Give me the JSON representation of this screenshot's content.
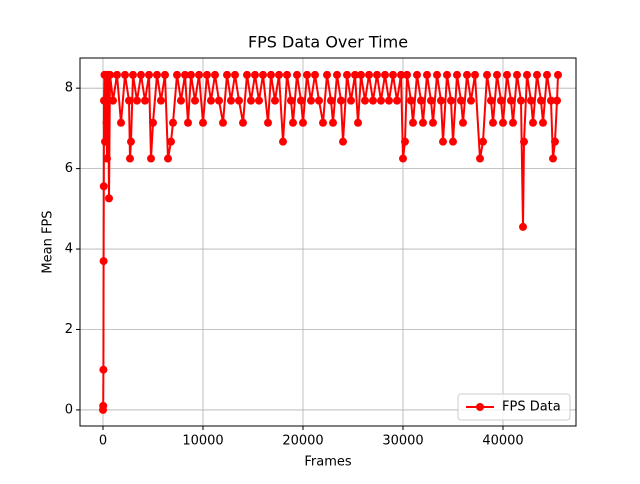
{
  "chart_data": {
    "type": "line",
    "title": "FPS Data Over Time",
    "x_label": "Frames",
    "y_label": "Mean FPS",
    "x": [
      0,
      20,
      40,
      60,
      80,
      100,
      150,
      200,
      300,
      350,
      400,
      500,
      600,
      700,
      1000,
      1400,
      1800,
      2200,
      2600,
      2700,
      2800,
      3000,
      3400,
      3800,
      4200,
      4600,
      4800,
      5000,
      5400,
      5800,
      6200,
      6500,
      6800,
      7000,
      7400,
      7800,
      8200,
      8500,
      8800,
      9200,
      9600,
      10000,
      10400,
      10800,
      11200,
      11600,
      12000,
      12400,
      12800,
      13200,
      13600,
      14000,
      14400,
      14800,
      15200,
      15600,
      16000,
      16500,
      16800,
      17200,
      17600,
      18000,
      18400,
      18800,
      19000,
      19400,
      19800,
      20000,
      20400,
      20800,
      21200,
      21600,
      22000,
      22400,
      22800,
      23000,
      23400,
      23800,
      24000,
      24400,
      24800,
      25200,
      25500,
      25800,
      26200,
      26600,
      27000,
      27400,
      27800,
      28200,
      28600,
      29000,
      29400,
      29800,
      30000,
      30200,
      30400,
      30800,
      31000,
      31400,
      31800,
      32000,
      32400,
      32800,
      33000,
      33400,
      33800,
      34000,
      34400,
      34800,
      35000,
      35400,
      35800,
      36000,
      36400,
      36800,
      37200,
      37700,
      38000,
      38400,
      38800,
      39000,
      39400,
      39800,
      40000,
      40400,
      40800,
      41000,
      41400,
      41800,
      42000,
      42100,
      42400,
      42800,
      43000,
      43400,
      43800,
      44000,
      44400,
      44800,
      45000,
      45200,
      45400,
      45500
    ],
    "series": [
      {
        "name": "FPS Data",
        "color": "#ff0000",
        "values": [
          0,
          0.1,
          1.0,
          3.7,
          5.56,
          7.69,
          8.33,
          6.67,
          8.33,
          7.14,
          6.25,
          8.33,
          5.26,
          8.33,
          7.69,
          8.33,
          7.14,
          8.33,
          7.69,
          6.25,
          6.67,
          8.33,
          7.69,
          8.33,
          7.69,
          8.33,
          6.25,
          7.14,
          8.33,
          7.69,
          8.33,
          6.25,
          6.67,
          7.14,
          8.33,
          7.69,
          8.33,
          7.14,
          8.33,
          7.69,
          8.33,
          7.14,
          8.33,
          7.69,
          8.33,
          7.69,
          7.14,
          8.33,
          7.69,
          8.33,
          7.69,
          7.14,
          8.33,
          7.69,
          8.33,
          7.69,
          8.33,
          7.14,
          8.33,
          7.69,
          8.33,
          6.67,
          8.33,
          7.69,
          7.14,
          8.33,
          7.69,
          7.14,
          8.33,
          7.69,
          8.33,
          7.69,
          7.14,
          8.33,
          7.69,
          7.14,
          8.33,
          7.69,
          6.67,
          8.33,
          7.69,
          8.33,
          7.14,
          8.33,
          7.69,
          8.33,
          7.69,
          8.33,
          7.69,
          8.33,
          7.69,
          8.33,
          7.69,
          8.33,
          6.25,
          6.67,
          8.33,
          7.69,
          7.14,
          8.33,
          7.69,
          7.14,
          8.33,
          7.69,
          7.14,
          8.33,
          7.69,
          6.67,
          8.33,
          7.69,
          6.67,
          8.33,
          7.69,
          7.14,
          8.33,
          7.69,
          8.33,
          6.25,
          6.67,
          8.33,
          7.69,
          7.14,
          8.33,
          7.69,
          7.14,
          8.33,
          7.69,
          7.14,
          8.33,
          7.69,
          4.55,
          6.67,
          8.33,
          7.69,
          7.14,
          8.33,
          7.69,
          7.14,
          8.33,
          7.69,
          6.25,
          6.67,
          7.69,
          8.33
        ]
      }
    ],
    "xlim": [
      -2300,
      47300
    ],
    "ylim": [
      -0.4,
      8.75
    ],
    "xticks": [
      0,
      10000,
      20000,
      30000,
      40000
    ],
    "yticks": [
      0,
      2,
      4,
      6,
      8
    ],
    "grid": true,
    "legend_position": "lower right"
  }
}
